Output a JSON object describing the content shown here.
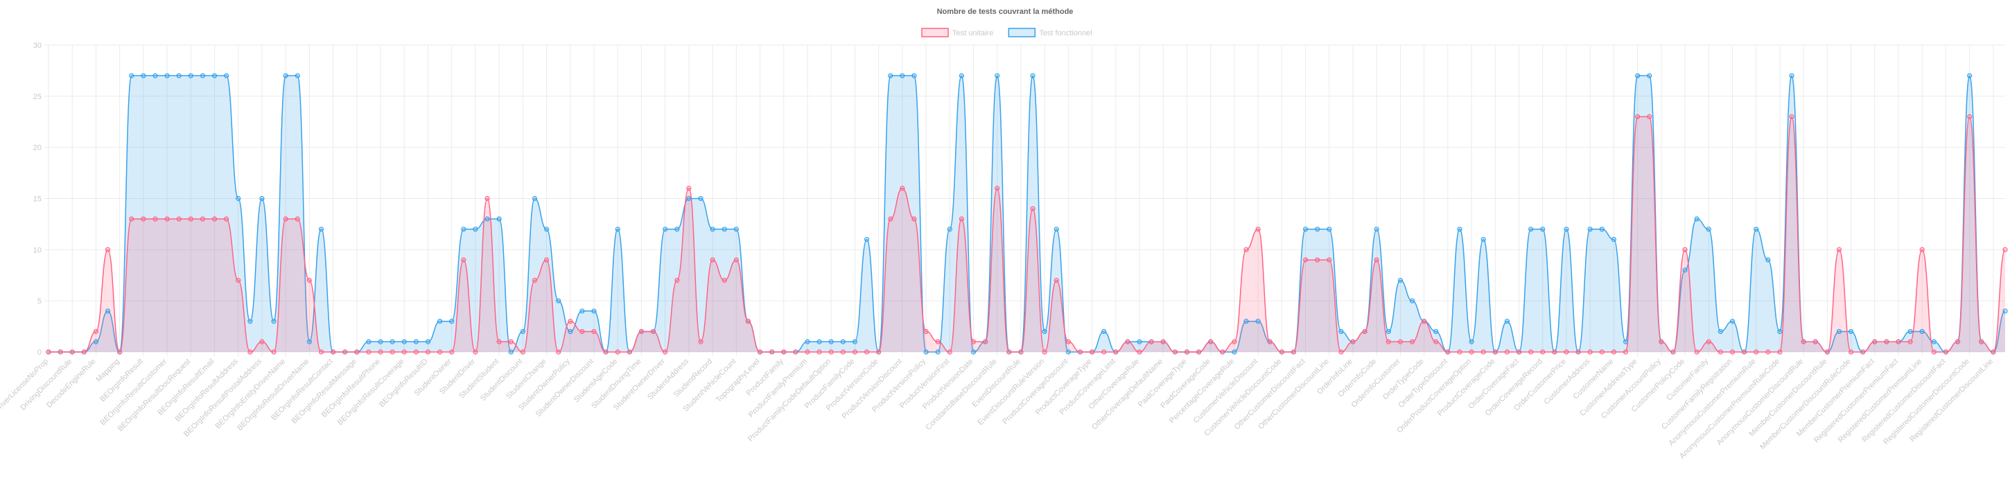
{
  "chart_data": {
    "type": "line",
    "title": "Nombre de tests couvrant la méthode",
    "categories": [
      "DriverLicenseNoProp",
      null,
      "DrivingDiscountRule",
      null,
      "DecodeEngineRule",
      null,
      "Mapping",
      null,
      "BEOrgInfoResult",
      null,
      "BEOrgInfoResultCustomer",
      null,
      "BEOrgInfoResultDocRequest",
      null,
      "BEOrgInfoResultEmail",
      null,
      "BEOrgInfoResultAddress",
      null,
      "BEOrgInfoResultPostalAddress",
      null,
      "BEOrgInfoEntityDriverName",
      null,
      "BEOrgInfoResultDriverName",
      null,
      "BEOrgInfoResultContact",
      null,
      "BEOrgInfoResultMessage",
      null,
      "BEOrgInfoResultPhone",
      null,
      "BEOrgInfoResultCoverage",
      null,
      "BEOrgInfoResultID",
      null,
      "StudentOwner",
      null,
      "StudentDriver",
      null,
      "StudentStudent",
      null,
      "StudentDiscount",
      null,
      "StudentChange",
      null,
      "StudentOwnerPolicy",
      null,
      "StudentOwnerDiscount",
      null,
      "StudentAgeCode",
      null,
      "StudentDrivingTime",
      null,
      "StudentOwnerDriver",
      null,
      "StudentAddress",
      null,
      "StudentRecord",
      null,
      "StudentVehicleCount",
      null,
      "TopographyLevel",
      null,
      "ProductFamily",
      null,
      "ProductFamilyPremium",
      null,
      "ProductFamilyCodeDefaultOption",
      null,
      "ProductFamilyCode",
      null,
      "ProductVersionCode",
      null,
      "ProductVersionDiscount",
      null,
      "ProductVersionPolicy",
      null,
      "ProductVersionFirst",
      null,
      "ProductVersionDate",
      null,
      "ConstantsBaseDiscountRule",
      null,
      "EventDiscountRule",
      null,
      "EventDiscountRuleVersion",
      null,
      "ProductCoverageDiscount",
      null,
      "ProductCoverageType",
      null,
      "ProductCoverageLimit",
      null,
      "OtherCoverageRule",
      null,
      "OtherCoverageDefaultName",
      null,
      "PaidCoverageType",
      null,
      "PaidCoverageCode",
      null,
      "PercentageCoverageRule",
      null,
      "CustomerVehicleDiscount",
      null,
      "CustomerVehicleDiscountCode",
      null,
      "OtherCustomerDiscountFact",
      null,
      "OtherCustomerDiscountLine",
      null,
      "OrderInfoLine",
      null,
      "OrderInfoCode",
      null,
      "OrderInfoCustomer",
      null,
      "OrderTypeCode",
      null,
      "OrderTypeDiscount",
      null,
      "OrderProductCoverageOption",
      null,
      "ProductCoverageCode",
      null,
      "OrderCoverageFact",
      null,
      "OrderCoverageRecord",
      null,
      "OrderCustomerPrice",
      null,
      "CustomerAddress",
      null,
      "CustomerName",
      null,
      "CustomerAddressType",
      null,
      "CustomerAccountPolicy",
      null,
      "CustomerPolicyCode",
      null,
      "CustomerFamily",
      null,
      "CustomerFamilyRegistration",
      null,
      "AnonymousCustomerPremiumRule",
      null,
      "AnonymousCustomerPremiumRuleCode",
      null,
      "AnonymousCustomerDiscountRule",
      null,
      "MemberCustomerDiscountRule",
      null,
      "MemberCustomerDiscountRuleCode",
      null,
      "MemberCustomerPremiumFact",
      null,
      "RegisteredCustomerPremiumFact",
      null,
      "RegisteredCustomerPremiumLine",
      null,
      "RegisteredCustomerDiscountFact",
      null,
      "RegisteredCustomerDiscountCode",
      null,
      "RegisteredCustomerDiscountLine",
      null
    ],
    "series": [
      {
        "name": "Test unitaire",
        "color": "#ff6384",
        "fill": "rgba(255,99,132,0.2)",
        "values": [
          0,
          0,
          0,
          0,
          2,
          10,
          0,
          13,
          13,
          13,
          13,
          13,
          13,
          13,
          13,
          13,
          7,
          0,
          1,
          0,
          13,
          13,
          7,
          0,
          0,
          0,
          0,
          0,
          0,
          0,
          0,
          0,
          0,
          0,
          0,
          9,
          0,
          15,
          1,
          1,
          0,
          7,
          9,
          0,
          3,
          2,
          2,
          0,
          0,
          0,
          2,
          2,
          0,
          7,
          16,
          1,
          9,
          7,
          9,
          3,
          0,
          0,
          0,
          0,
          0,
          0,
          0,
          0,
          0,
          0,
          0,
          13,
          16,
          13,
          2,
          1,
          0,
          13,
          1,
          1,
          16,
          0,
          0,
          14,
          0,
          7,
          1,
          0,
          0,
          0,
          0,
          1,
          0,
          1,
          1,
          0,
          0,
          0,
          1,
          0,
          1,
          10,
          12,
          1,
          0,
          0,
          9,
          9,
          9,
          0,
          1,
          2,
          9,
          1,
          1,
          1,
          3,
          1,
          0,
          0,
          0,
          0,
          0,
          0,
          0,
          0,
          0,
          0,
          0,
          0,
          0,
          0,
          0,
          0,
          23,
          23,
          1,
          0,
          10,
          0,
          1,
          0,
          0,
          0,
          0,
          0,
          0,
          23,
          1,
          1,
          0,
          10,
          0,
          0,
          1,
          1,
          1,
          1,
          10,
          0,
          0,
          1,
          23,
          1,
          0,
          10
        ]
      },
      {
        "name": "Test fonctionnel",
        "color": "#36a2eb",
        "fill": "rgba(54,162,235,0.2)",
        "values": [
          0,
          0,
          0,
          0,
          1,
          4,
          0,
          27,
          27,
          27,
          27,
          27,
          27,
          27,
          27,
          27,
          15,
          3,
          15,
          3,
          27,
          27,
          1,
          12,
          0,
          0,
          0,
          1,
          1,
          1,
          1,
          1,
          1,
          3,
          3,
          12,
          12,
          13,
          13,
          0,
          2,
          15,
          12,
          5,
          2,
          4,
          4,
          0,
          12,
          0,
          2,
          2,
          12,
          12,
          15,
          15,
          12,
          12,
          12,
          3,
          0,
          0,
          0,
          0,
          1,
          1,
          1,
          1,
          1,
          11,
          0,
          27,
          27,
          27,
          0,
          0,
          12,
          27,
          0,
          1,
          27,
          0,
          0,
          27,
          2,
          12,
          0,
          0,
          0,
          2,
          0,
          1,
          1,
          1,
          1,
          0,
          0,
          0,
          1,
          0,
          0,
          3,
          3,
          1,
          0,
          0,
          12,
          12,
          12,
          2,
          1,
          2,
          12,
          2,
          7,
          5,
          3,
          2,
          0,
          12,
          1,
          11,
          0,
          3,
          0,
          12,
          12,
          0,
          12,
          0,
          12,
          12,
          11,
          1,
          27,
          27,
          1,
          0,
          8,
          13,
          12,
          2,
          3,
          0,
          12,
          9,
          2,
          27,
          1,
          1,
          0,
          2,
          2,
          0,
          1,
          1,
          1,
          2,
          2,
          1,
          0,
          1,
          27,
          1,
          0,
          4
        ]
      }
    ],
    "ylim": [
      0,
      30
    ],
    "yticks": [
      0,
      5,
      10,
      15,
      20,
      25,
      30
    ],
    "grid": true,
    "legend": "top"
  }
}
